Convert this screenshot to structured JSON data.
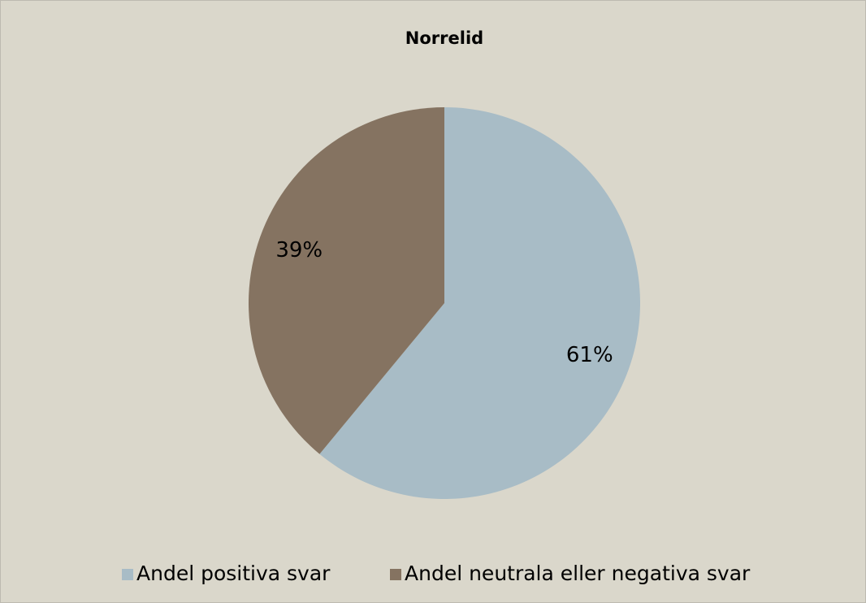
{
  "chart_data": {
    "type": "pie",
    "title": "Norrelid",
    "categories": [
      "Andel positiva svar",
      "Andel neutrala eller negativa svar"
    ],
    "values": [
      61,
      39
    ],
    "value_labels": [
      "61%",
      "39%"
    ],
    "colors": [
      "#a8bcc6",
      "#857361"
    ],
    "legend": "bottom"
  }
}
